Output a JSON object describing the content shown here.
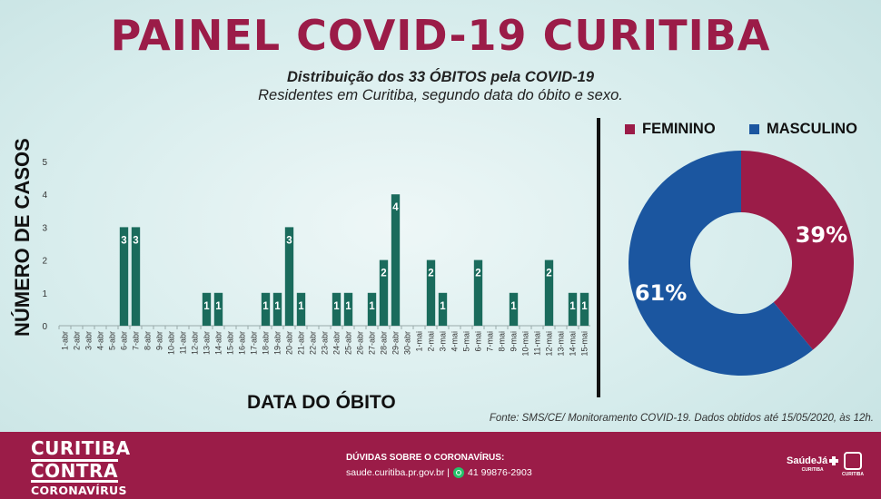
{
  "header": {
    "title": "PAINEL COVID-19 CURITIBA",
    "subtitle_line1": "Distribuição dos 33 ÓBITOS pela COVID-19",
    "subtitle_line2": "Residentes em Curitiba, segundo data do óbito e sexo."
  },
  "chart_data": [
    {
      "type": "bar",
      "ylabel": "NÚMERO DE CASOS",
      "xlabel": "DATA DO ÓBITO",
      "ylim": [
        0,
        5
      ],
      "yticks": [
        0,
        1,
        2,
        3,
        4,
        5
      ],
      "grid": false,
      "color": "#1a6b5c",
      "categories": [
        "1-abr",
        "2-abr",
        "3-abr",
        "4-abr",
        "5-abr",
        "6-abr",
        "7-abr",
        "8-abr",
        "9-abr",
        "10-abr",
        "11-abr",
        "12-abr",
        "13-abr",
        "14-abr",
        "15-abr",
        "16-abr",
        "17-abr",
        "18-abr",
        "19-abr",
        "20-abr",
        "21-abr",
        "22-abr",
        "23-abr",
        "24-abr",
        "25-abr",
        "26-abr",
        "27-abr",
        "28-abr",
        "29-abr",
        "30-abr",
        "1-mai",
        "2-mai",
        "3-mai",
        "4-mai",
        "5-mai",
        "6-mai",
        "7-mai",
        "8-mai",
        "9-mai",
        "10-mai",
        "11-mai",
        "12-mai",
        "13-mai",
        "14-mai",
        "15-mai"
      ],
      "values": [
        0,
        0,
        0,
        0,
        0,
        3,
        3,
        0,
        0,
        0,
        0,
        0,
        1,
        1,
        0,
        0,
        0,
        1,
        1,
        3,
        1,
        0,
        0,
        1,
        1,
        0,
        1,
        2,
        4,
        0,
        0,
        2,
        1,
        0,
        0,
        2,
        0,
        0,
        1,
        0,
        0,
        2,
        0,
        1,
        1
      ]
    },
    {
      "type": "pie",
      "variant": "donut",
      "legend_position": "top",
      "categories": [
        "FEMININO",
        "MASCULINO"
      ],
      "values": [
        39,
        61
      ],
      "labels": [
        "39%",
        "61%"
      ],
      "colors": [
        "#9b1c48",
        "#1b56a0"
      ]
    }
  ],
  "source": "Fonte: SMS/CE/ Monitoramento COVID-19. Dados obtidos até 15/05/2020, às 12h.",
  "footer": {
    "brand_line1": "CURITIBA",
    "brand_line2": "CONTRA",
    "brand_line3": "CORONAVÍRUS",
    "question": "DÚVIDAS SOBRE O CORONAVÍRUS:",
    "site": "saude.curitiba.pr.gov.br",
    "separator": "|",
    "phone": "41 99876-2903",
    "whatsapp_icon": "whatsapp-icon",
    "logo1_text": "SaúdeJá",
    "logo1_sub": "CURITIBA",
    "logo2_sub": "CURITIBA"
  }
}
